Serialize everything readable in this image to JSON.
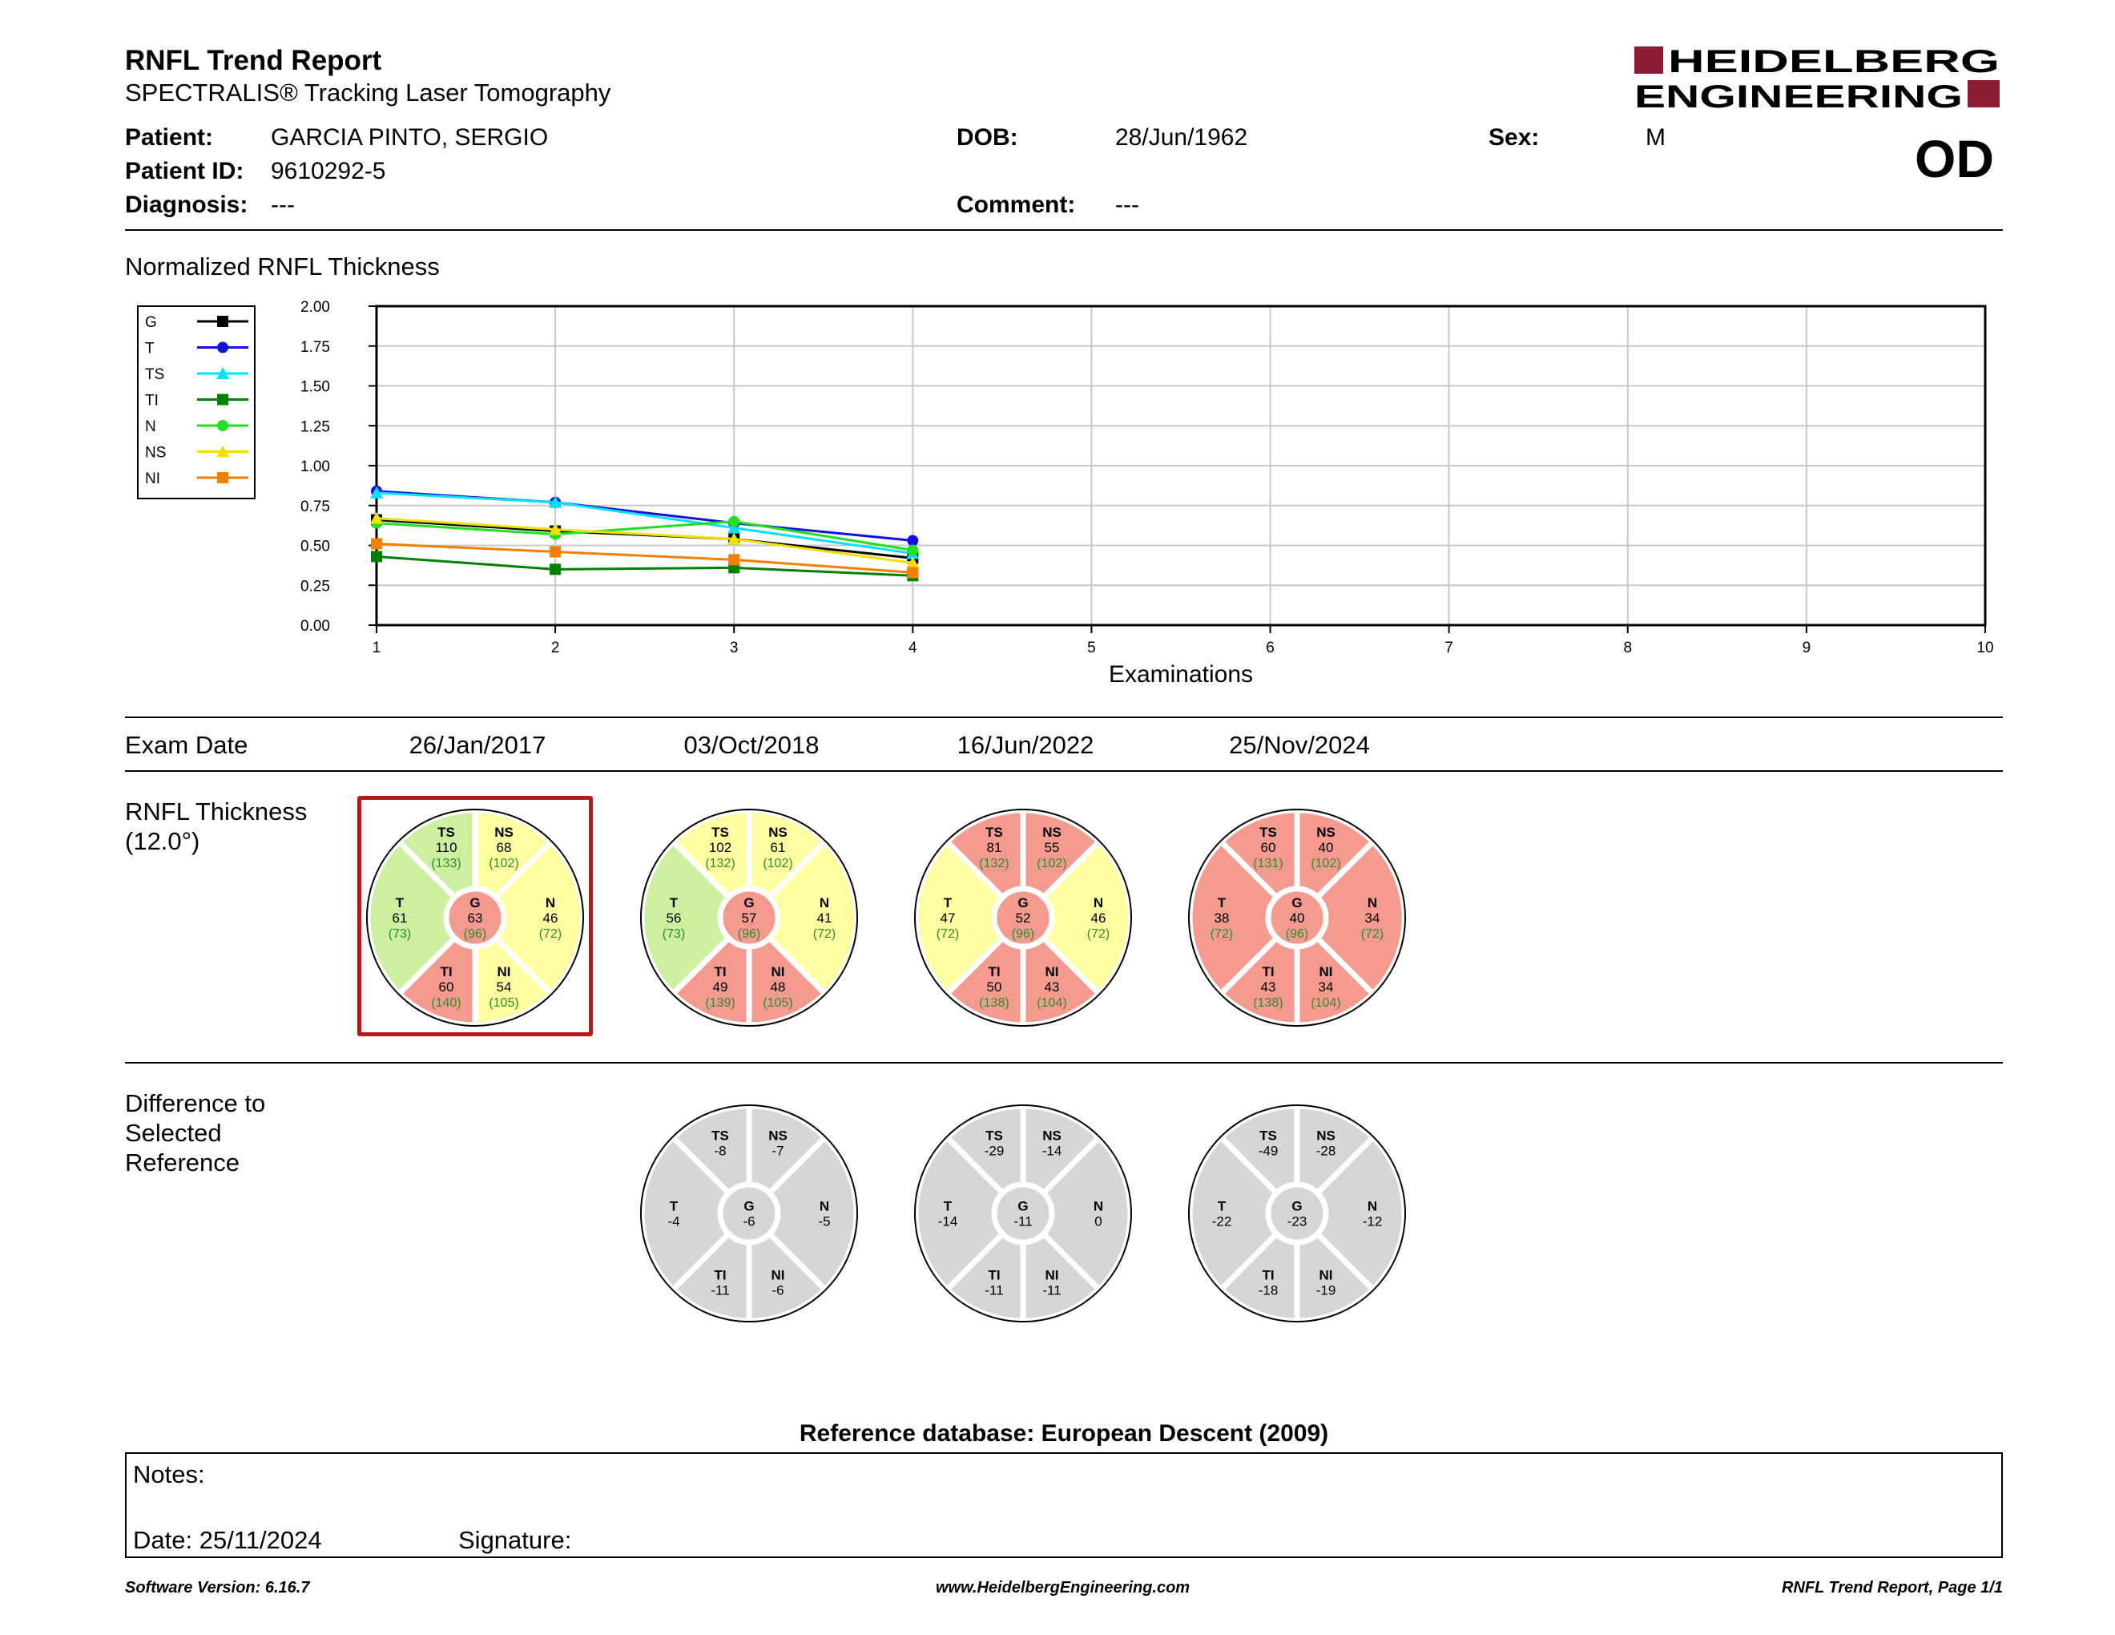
{
  "report": {
    "title": "RNFL Trend Report",
    "subtitle": "SPECTRALIS® Tracking Laser Tomography"
  },
  "logo": {
    "line1": "HEIDELBERG",
    "line2": "ENGINEERING",
    "color": "#8b1c33"
  },
  "patient": {
    "name_label": "Patient:",
    "name": "GARCIA PINTO, SERGIO",
    "id_label": "Patient ID:",
    "id": "9610292-5",
    "diagnosis_label": "Diagnosis:",
    "diagnosis": "---",
    "dob_label": "DOB:",
    "dob": "28/Jun/1962",
    "comment_label": "Comment:",
    "comment": "---",
    "sex_label": "Sex:",
    "sex": "M",
    "eye": "OD"
  },
  "chart_section_title": "Normalized RNFL Thickness",
  "chart_data": {
    "type": "line",
    "title": "",
    "xlabel": "Examinations",
    "ylabel": "",
    "x": [
      1,
      2,
      3,
      4
    ],
    "xlim": [
      1,
      10
    ],
    "ylim": [
      0,
      2
    ],
    "xticks": [
      "1",
      "2",
      "3",
      "4",
      "5",
      "6",
      "7",
      "8",
      "9",
      "10"
    ],
    "yticks": [
      "0.00",
      "0.25",
      "0.50",
      "0.75",
      "1.00",
      "1.25",
      "1.50",
      "1.75",
      "2.00"
    ],
    "grid": true,
    "legend_position": "top-left",
    "series": [
      {
        "name": "G",
        "color": "#000000",
        "marker": "square",
        "values": [
          0.66,
          0.59,
          0.54,
          0.42
        ]
      },
      {
        "name": "T",
        "color": "#1010e0",
        "marker": "circle",
        "values": [
          0.84,
          0.77,
          0.64,
          0.53
        ]
      },
      {
        "name": "TS",
        "color": "#00e0ff",
        "marker": "triangle",
        "values": [
          0.83,
          0.77,
          0.61,
          0.45
        ]
      },
      {
        "name": "TI",
        "color": "#008000",
        "marker": "square",
        "values": [
          0.43,
          0.35,
          0.36,
          0.31
        ]
      },
      {
        "name": "N",
        "color": "#20e020",
        "marker": "circle",
        "values": [
          0.64,
          0.57,
          0.65,
          0.47
        ]
      },
      {
        "name": "NS",
        "color": "#f0e000",
        "marker": "triangle",
        "values": [
          0.67,
          0.6,
          0.54,
          0.39
        ]
      },
      {
        "name": "NI",
        "color": "#f08000",
        "marker": "square",
        "values": [
          0.51,
          0.46,
          0.41,
          0.33
        ]
      }
    ]
  },
  "exam_date_label": "Exam Date",
  "exam_dates": [
    "26/Jan/2017",
    "03/Oct/2018",
    "16/Jun/2022",
    "25/Nov/2024"
  ],
  "rnfl_label": {
    "line1": "RNFL Thickness",
    "line2": "(12.0°)"
  },
  "diff_label": {
    "line1": "Difference to",
    "line2": "Selected",
    "line3": "Reference"
  },
  "colors": {
    "green": "#ccf0a0",
    "yellow": "#fffea0",
    "red": "#f49a8e",
    "grey": "#d6d6d6",
    "normal_text": "#2e8b2e",
    "selection": "#b31b1b"
  },
  "rnfl_charts": [
    {
      "selected": true,
      "sectors": {
        "TS": {
          "value": "110",
          "normal": "(133)",
          "status": "green"
        },
        "NS": {
          "value": "68",
          "normal": "(102)",
          "status": "yellow"
        },
        "T": {
          "value": "61",
          "normal": "(73)",
          "status": "green"
        },
        "G": {
          "value": "63",
          "normal": "(96)",
          "status": "red"
        },
        "N": {
          "value": "46",
          "normal": "(72)",
          "status": "yellow"
        },
        "TI": {
          "value": "60",
          "normal": "(140)",
          "status": "red"
        },
        "NI": {
          "value": "54",
          "normal": "(105)",
          "status": "yellow"
        }
      }
    },
    {
      "selected": false,
      "sectors": {
        "TS": {
          "value": "102",
          "normal": "(132)",
          "status": "yellow"
        },
        "NS": {
          "value": "61",
          "normal": "(102)",
          "status": "yellow"
        },
        "T": {
          "value": "56",
          "normal": "(73)",
          "status": "green"
        },
        "G": {
          "value": "57",
          "normal": "(96)",
          "status": "red"
        },
        "N": {
          "value": "41",
          "normal": "(72)",
          "status": "yellow"
        },
        "TI": {
          "value": "49",
          "normal": "(139)",
          "status": "red"
        },
        "NI": {
          "value": "48",
          "normal": "(105)",
          "status": "red"
        }
      }
    },
    {
      "selected": false,
      "sectors": {
        "TS": {
          "value": "81",
          "normal": "(132)",
          "status": "red"
        },
        "NS": {
          "value": "55",
          "normal": "(102)",
          "status": "red"
        },
        "T": {
          "value": "47",
          "normal": "(72)",
          "status": "yellow"
        },
        "G": {
          "value": "52",
          "normal": "(96)",
          "status": "red"
        },
        "N": {
          "value": "46",
          "normal": "(72)",
          "status": "yellow"
        },
        "TI": {
          "value": "50",
          "normal": "(138)",
          "status": "red"
        },
        "NI": {
          "value": "43",
          "normal": "(104)",
          "status": "red"
        }
      }
    },
    {
      "selected": false,
      "sectors": {
        "TS": {
          "value": "60",
          "normal": "(131)",
          "status": "red"
        },
        "NS": {
          "value": "40",
          "normal": "(102)",
          "status": "red"
        },
        "T": {
          "value": "38",
          "normal": "(72)",
          "status": "red"
        },
        "G": {
          "value": "40",
          "normal": "(96)",
          "status": "red"
        },
        "N": {
          "value": "34",
          "normal": "(72)",
          "status": "red"
        },
        "TI": {
          "value": "43",
          "normal": "(138)",
          "status": "red"
        },
        "NI": {
          "value": "34",
          "normal": "(104)",
          "status": "red"
        }
      }
    }
  ],
  "diff_charts": [
    {
      "sectors": {
        "TS": "-8",
        "NS": "-7",
        "T": "-4",
        "G": "-6",
        "N": "-5",
        "TI": "-11",
        "NI": "-6"
      }
    },
    {
      "sectors": {
        "TS": "-29",
        "NS": "-14",
        "T": "-14",
        "G": "-11",
        "N": "0",
        "TI": "-11",
        "NI": "-11"
      }
    },
    {
      "sectors": {
        "TS": "-49",
        "NS": "-28",
        "T": "-22",
        "G": "-23",
        "N": "-12",
        "TI": "-18",
        "NI": "-19"
      }
    }
  ],
  "reference_db": "Reference database: European Descent (2009)",
  "notes": {
    "label": "Notes:",
    "date": "Date: 25/11/2024",
    "signature": "Signature:"
  },
  "footer": {
    "version": "Software Version: 6.16.7",
    "website": "www.HeidelbergEngineering.com",
    "page": "RNFL Trend Report, Page 1/1"
  }
}
